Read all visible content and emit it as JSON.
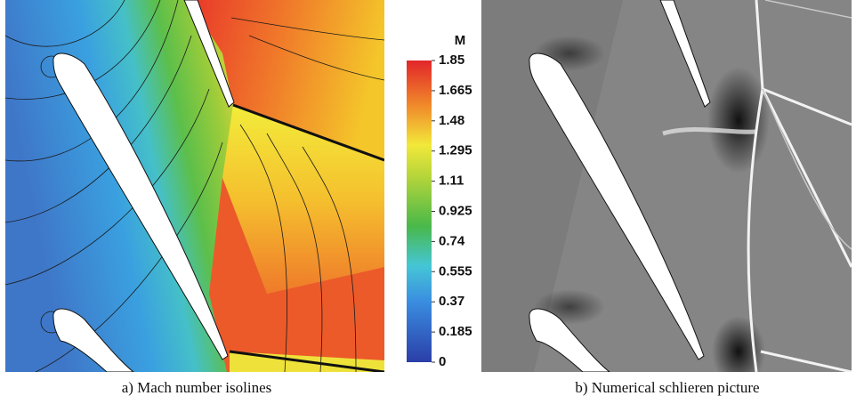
{
  "panels": [
    {
      "caption": "a) Mach number isolines"
    },
    {
      "caption": "b) Numerical schlieren picture"
    }
  ],
  "colorbar": {
    "title": "M",
    "lim": [
      0,
      1.85
    ],
    "ticks": [
      1.85,
      1.665,
      1.48,
      1.295,
      1.11,
      0.925,
      0.74,
      0.555,
      0.37,
      0.185,
      0
    ]
  }
}
